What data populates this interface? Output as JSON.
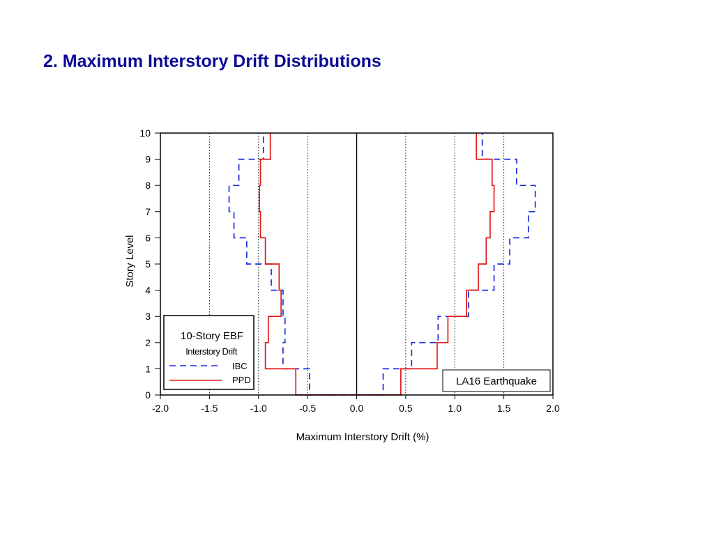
{
  "slide": {
    "title": "2. Maximum Interstory Drift Distributions"
  },
  "chart_data": {
    "type": "line",
    "title": "",
    "xlabel": "Maximum Interstory Drift (%)",
    "ylabel": "Story Level",
    "xlim": [
      -2.0,
      2.0
    ],
    "ylim": [
      0,
      10
    ],
    "x_ticks": [
      "-2.0",
      "-1.5",
      "-1.0",
      "-0.5",
      "0.0",
      "0.5",
      "1.0",
      "1.5",
      "2.0"
    ],
    "y_ticks": [
      "0",
      "1",
      "2",
      "3",
      "4",
      "5",
      "6",
      "7",
      "8",
      "9",
      "10"
    ],
    "grid": "dotted vertical at -1.5, -1.0, -0.5, 0.5, 1.0, 1.5; solid at 0.0",
    "stories": [
      1,
      2,
      3,
      4,
      5,
      6,
      7,
      8,
      9,
      10
    ],
    "legend": {
      "title": "10-Story EBF",
      "subtitle": "Interstory Drift",
      "placement": "bottom-left",
      "entries": [
        {
          "name": "IBC",
          "style": "dashed",
          "color": "#1a2ee0"
        },
        {
          "name": "PPD",
          "style": "solid",
          "color": "#e01a1a"
        }
      ]
    },
    "annotation": "LA16 Earthquake",
    "series": [
      {
        "name": "IBC",
        "side": "negative",
        "color": "#1a2ee0",
        "dash": true,
        "values": [
          -0.48,
          -0.75,
          -0.73,
          -0.75,
          -0.87,
          -1.12,
          -1.25,
          -1.3,
          -1.2,
          -0.95
        ]
      },
      {
        "name": "IBC",
        "side": "positive",
        "color": "#1a2ee0",
        "dash": true,
        "values": [
          0.27,
          0.56,
          0.83,
          1.14,
          1.4,
          1.56,
          1.75,
          1.82,
          1.63,
          1.28
        ]
      },
      {
        "name": "PPD",
        "side": "negative",
        "color": "#e01a1a",
        "dash": false,
        "values": [
          -0.62,
          -0.93,
          -0.9,
          -0.77,
          -0.79,
          -0.93,
          -0.98,
          -0.99,
          -0.98,
          -0.88
        ]
      },
      {
        "name": "PPD",
        "side": "positive",
        "color": "#e01a1a",
        "dash": false,
        "values": [
          0.45,
          0.82,
          0.93,
          1.12,
          1.24,
          1.32,
          1.36,
          1.4,
          1.38,
          1.22
        ]
      }
    ]
  }
}
